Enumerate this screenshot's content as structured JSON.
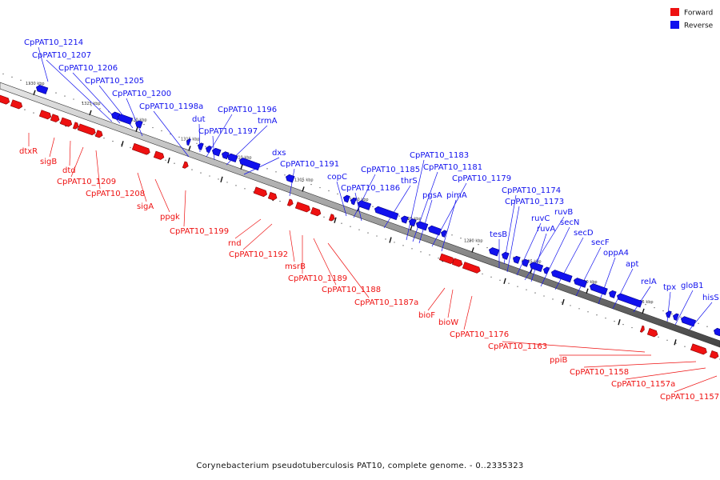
{
  "caption": "Corynebacterium pseudotuberculosis PAT10, complete genome. - 0..2335323",
  "legend": {
    "forward_label": "Forward",
    "reverse_label": "Reverse",
    "forward_color": "#ee1111",
    "reverse_color": "#1111ee"
  },
  "kbp_ticks": [
    "1330 kbp",
    "1325 kbp",
    "1320 kbp",
    "1315 kbp",
    "1310 kbp",
    "1305 kbp",
    "1300 kbp",
    "1295 kbp",
    "1290 kbp",
    "1285 kbp",
    "1280 kbp",
    "1275 kbp"
  ],
  "reverse_labels": [
    "CpPAT10_1214",
    "CpPAT10_1207",
    "CpPAT10_1206",
    "CpPAT10_1205",
    "CpPAT10_1200",
    "CpPAT10_1198a",
    "dut",
    "CpPAT10_1196",
    "CpPAT10_1197",
    "trmA",
    "dxs",
    "CpPAT10_1191",
    "copC",
    "CpPAT10_1185",
    "CpPAT10_1186",
    "thrS",
    "CpPAT10_1183",
    "CpPAT10_1181",
    "pgsA",
    "CpPAT10_1179",
    "pimA",
    "tesB",
    "CpPAT10_1174",
    "CpPAT10_1173",
    "ruvC",
    "ruvB",
    "ruvA",
    "secN",
    "secD",
    "secF",
    "oppA4",
    "apt",
    "relA",
    "tpx",
    "gloB1",
    "hisS"
  ],
  "forward_labels": [
    "dtxR",
    "sigB",
    "dtd",
    "CpPAT10_1209",
    "CpPAT10_1208",
    "sigA",
    "ppgk",
    "CpPAT10_1199",
    "rnd",
    "CpPAT10_1192",
    "msrB",
    "CpPAT10_1189",
    "CpPAT10_1188",
    "CpPAT10_1187a",
    "bioF",
    "bioW",
    "CpPAT10_1176",
    "CpPAT10_1163",
    "ppiB",
    "CpPAT10_1158",
    "CpPAT10_1157a",
    "CpPAT10_1157"
  ]
}
